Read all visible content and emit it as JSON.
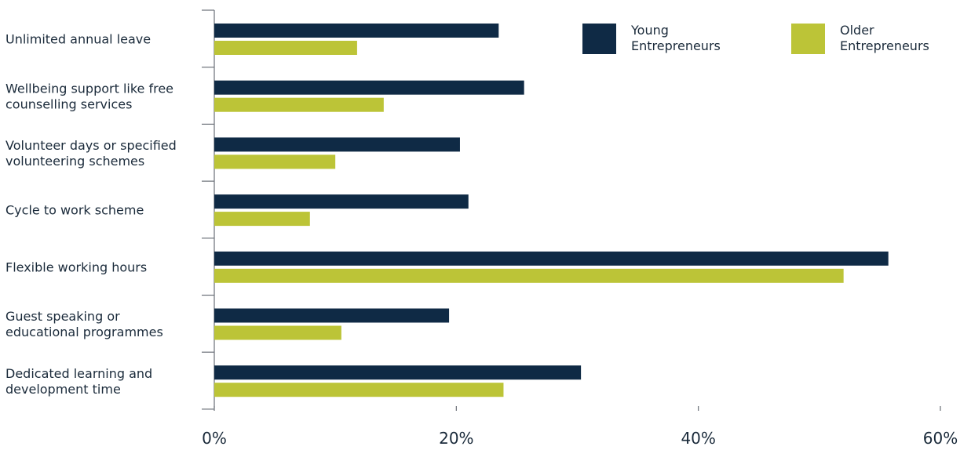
{
  "chart_data": {
    "type": "bar",
    "orientation": "horizontal",
    "categories": [
      [
        "Unlimited annual leave"
      ],
      [
        "Wellbeing support like free",
        "counselling services"
      ],
      [
        "Volunteer days or specified",
        "volunteering schemes"
      ],
      [
        "Cycle to work scheme"
      ],
      [
        "Flexible working hours"
      ],
      [
        "Guest speaking or",
        "educational programmes"
      ],
      [
        "Dedicated learning and",
        "development time"
      ]
    ],
    "series": [
      {
        "name": [
          "Young",
          "Entrepreneurs"
        ],
        "color": "#0f2a45",
        "values": [
          23.5,
          25.6,
          20.3,
          21.0,
          55.7,
          19.4,
          30.3
        ]
      },
      {
        "name": [
          "Older",
          "Entrepreneurs"
        ],
        "color": "#bcc437",
        "values": [
          11.8,
          14.0,
          10.0,
          7.9,
          52.0,
          10.5,
          23.9
        ]
      }
    ],
    "xlim": [
      0,
      60
    ],
    "xticks": [
      "0%",
      "20%",
      "40%",
      "60%"
    ],
    "xtick_values": [
      0,
      20,
      40,
      60
    ],
    "legend_position": "top-right",
    "grid": false
  }
}
